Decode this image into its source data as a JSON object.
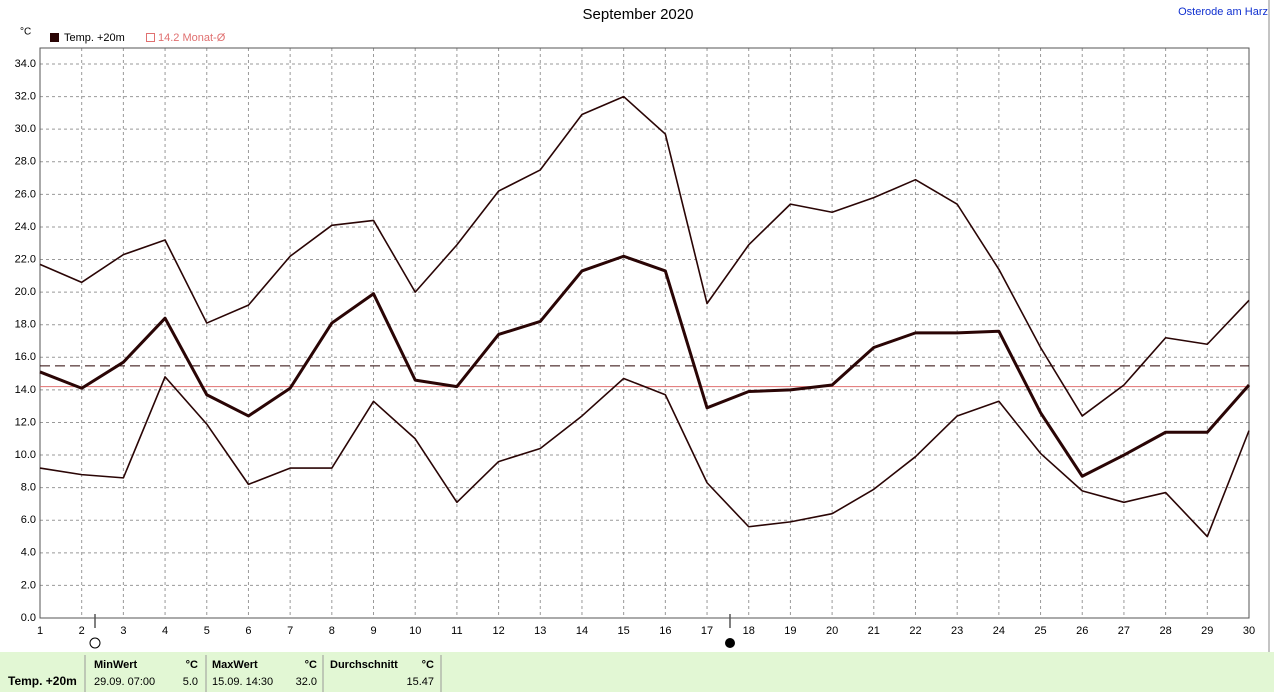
{
  "chart_data": {
    "type": "line",
    "title": "September 2020",
    "location": "Osterode am Harz",
    "y_unit": "°C",
    "x": [
      1,
      2,
      3,
      4,
      5,
      6,
      7,
      8,
      9,
      10,
      11,
      12,
      13,
      14,
      15,
      16,
      17,
      18,
      19,
      20,
      21,
      22,
      23,
      24,
      25,
      26,
      27,
      28,
      29,
      30
    ],
    "xlim": [
      1,
      30
    ],
    "xticks": [
      1,
      2,
      3,
      4,
      5,
      6,
      7,
      8,
      9,
      10,
      11,
      12,
      13,
      14,
      15,
      16,
      17,
      18,
      19,
      20,
      21,
      22,
      23,
      24,
      25,
      26,
      27,
      28,
      29,
      30
    ],
    "ylim": [
      0,
      34
    ],
    "yticks": [
      {
        "value": 0,
        "label": "0.0"
      },
      {
        "value": 2,
        "label": "2.0"
      },
      {
        "value": 4,
        "label": "4.0"
      },
      {
        "value": 6,
        "label": "6.0"
      },
      {
        "value": 8,
        "label": "8.0"
      },
      {
        "value": 10,
        "label": "10.0"
      },
      {
        "value": 12,
        "label": "12.0"
      },
      {
        "value": 14,
        "label": "14.0"
      },
      {
        "value": 16,
        "label": "16.0"
      },
      {
        "value": 18,
        "label": "18.0"
      },
      {
        "value": 20,
        "label": "20.0"
      },
      {
        "value": 22,
        "label": "22.0"
      },
      {
        "value": 24,
        "label": "24.0"
      },
      {
        "value": 26,
        "label": "26.0"
      },
      {
        "value": 28,
        "label": "28.0"
      },
      {
        "value": 30,
        "label": "30.0"
      },
      {
        "value": 32,
        "label": "32.0"
      },
      {
        "value": 34,
        "label": "34.0"
      }
    ],
    "grid": true,
    "series": [
      {
        "color": "#2a0505",
        "values": [
          21.7,
          20.6,
          22.3,
          23.2,
          18.1,
          19.2,
          22.2,
          24.1,
          24.4,
          20.0,
          22.9,
          26.2,
          27.5,
          30.9,
          32.0,
          29.7,
          19.3,
          22.9,
          25.4,
          24.9,
          25.8,
          26.9,
          25.4,
          21.4,
          16.6,
          12.4,
          14.3,
          17.2,
          16.8,
          19.5
        ]
      },
      {
        "name": "Temp. +20m",
        "color": "#2a0505",
        "values": [
          15.1,
          14.1,
          15.7,
          18.4,
          13.7,
          12.4,
          14.1,
          18.1,
          19.9,
          14.6,
          14.2,
          17.4,
          18.2,
          21.3,
          22.2,
          21.3,
          12.9,
          13.9,
          14.0,
          14.3,
          16.6,
          17.5,
          17.5,
          17.6,
          12.6,
          8.7,
          10.0,
          11.4,
          11.4,
          14.3
        ]
      },
      {
        "color": "#2a0505",
        "values": [
          9.2,
          8.8,
          8.6,
          14.8,
          11.9,
          8.2,
          9.2,
          9.2,
          13.3,
          11.0,
          7.1,
          9.6,
          10.4,
          12.4,
          14.7,
          13.7,
          8.3,
          5.6,
          5.9,
          6.4,
          7.9,
          9.9,
          12.4,
          13.3,
          10.1,
          7.8,
          7.1,
          7.7,
          5.0,
          11.5
        ]
      }
    ],
    "reference": {
      "label": "14.2 Monat-Ø",
      "value": 14.2,
      "color": "#e07070"
    },
    "mean_line": {
      "value": 15.47,
      "color": "#2a0505"
    }
  },
  "footer": {
    "row_label": "Temp. +20m",
    "min": {
      "title": "MinWert",
      "unit": "°C",
      "time": "29.09.  07:00",
      "value": "5.0"
    },
    "max": {
      "title": "MaxWert",
      "unit": "°C",
      "time": "15.09.  14:30",
      "value": "32.0"
    },
    "avg": {
      "title": "Durchschnitt",
      "unit": "°C",
      "value": "15.47"
    }
  }
}
